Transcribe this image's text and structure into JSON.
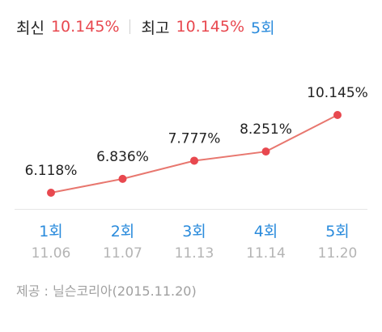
{
  "header": {
    "latest_label": "최신",
    "latest_value": "10.145%",
    "highest_label": "최고",
    "highest_value": "10.145%",
    "highest_round": "5회"
  },
  "colors": {
    "accent_red": "#e8484f",
    "line_red": "#e8776f",
    "round_blue": "#2a8bdc",
    "date_gray": "#b4b4b4",
    "text_dark": "#222222"
  },
  "chart_data": {
    "type": "line",
    "categories": [
      "1회",
      "2회",
      "3회",
      "4회",
      "5회"
    ],
    "dates": [
      "11.06",
      "11.07",
      "11.13",
      "11.14",
      "11.20"
    ],
    "values": [
      6.118,
      6.836,
      7.777,
      8.251,
      10.145
    ],
    "value_labels": [
      "6.118%",
      "6.836%",
      "7.777%",
      "8.251%",
      "10.145%"
    ]
  },
  "source": "제공 : 닐슨코리아(2015.11.20)"
}
